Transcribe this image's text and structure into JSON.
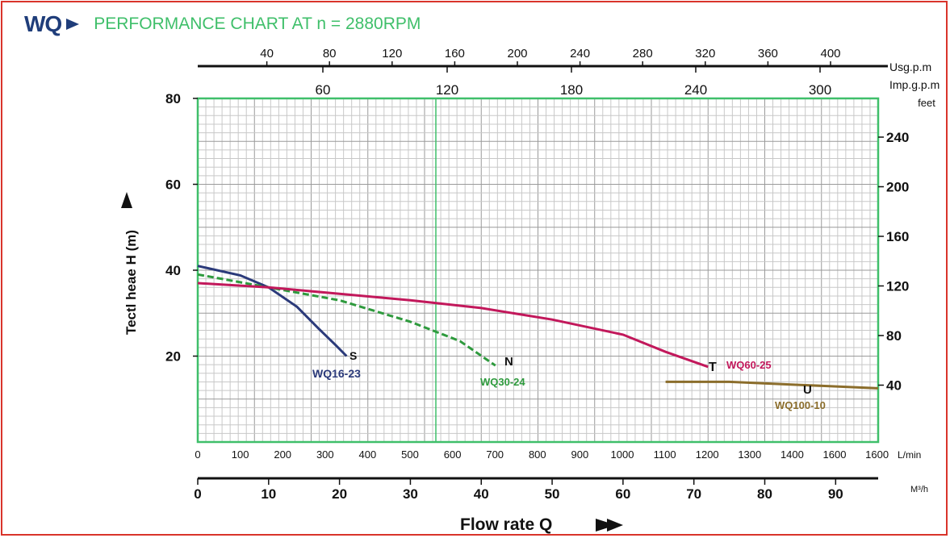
{
  "header": {
    "brand": "WQ",
    "title": "PERFORMANCE CHART AT n = 2880RPM"
  },
  "chart_data": {
    "type": "line",
    "title": "PERFORMANCE CHART AT n = 2880RPM",
    "xlabel": "Flow rate Q",
    "ylabel": "Tectl heae H (m)",
    "xlim": [
      0,
      96
    ],
    "ylim": [
      0,
      80
    ],
    "grid": true,
    "axes": {
      "m3h": {
        "unit": "M³/h",
        "ticks": [
          "0",
          "10",
          "20",
          "30",
          "40",
          "50",
          "60",
          "70",
          "80",
          "90"
        ]
      },
      "lmin": {
        "unit": "L/min",
        "ticks": [
          "0",
          "100",
          "200",
          "300",
          "400",
          "500",
          "600",
          "700",
          "800",
          "900",
          "1000",
          "1100",
          "1200",
          "1300",
          "1400",
          "1600",
          "1600"
        ]
      },
      "usgpm": {
        "unit": "Usg.p.m",
        "ticks": [
          "40",
          "80",
          "120",
          "160",
          "200",
          "240",
          "280",
          "320",
          "360",
          "400"
        ]
      },
      "impgpm": {
        "unit": "Imp.g.p.m",
        "ticks": [
          "60",
          "120",
          "180",
          "240",
          "300"
        ]
      },
      "head_m": {
        "ticks": [
          "80",
          "60",
          "40",
          "20"
        ]
      },
      "feet": {
        "unit": "feet",
        "ticks": [
          "240",
          "200",
          "160",
          "120",
          "80",
          "40"
        ]
      }
    },
    "series": [
      {
        "name": "WQ16-23",
        "letter": "S",
        "color": "#2b3a7a",
        "dash": "",
        "x": [
          0,
          6,
          10,
          14,
          17,
          19.5,
          21
        ],
        "y": [
          41,
          38.8,
          36,
          31.5,
          26.5,
          22.5,
          20
        ]
      },
      {
        "name": "WQ30-24",
        "letter": "N",
        "color": "#2e9a3d",
        "dash": "8,4",
        "x": [
          0,
          10,
          20,
          30,
          37,
          42
        ],
        "y": [
          39,
          36,
          33,
          28,
          23.5,
          17.8
        ]
      },
      {
        "name": "WQ60-25",
        "letter": "T",
        "color": "#c2185b",
        "dash": "",
        "x": [
          0,
          10,
          20,
          30,
          40,
          50,
          60,
          66,
          72
        ],
        "y": [
          37,
          36,
          34.5,
          33,
          31.2,
          28.5,
          25,
          21,
          17.5
        ]
      },
      {
        "name": "WQ100-10",
        "letter": "U",
        "color": "#8b6d2b",
        "dash": "",
        "x": [
          66,
          75,
          85,
          96
        ],
        "y": [
          14,
          14,
          13.3,
          12.5
        ]
      }
    ]
  }
}
